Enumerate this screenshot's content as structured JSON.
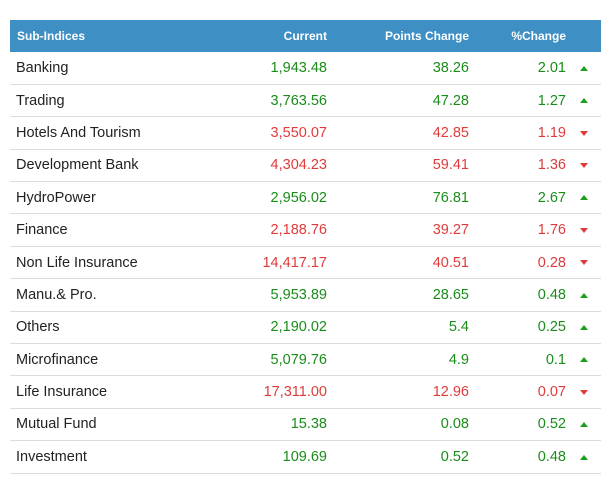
{
  "header": {
    "col1": "Sub-Indices",
    "col2": "Current",
    "col3": "Points Change",
    "col4": "%Change"
  },
  "colors": {
    "header_bg": "#3d8fc4",
    "up": "#1a8c1a",
    "down": "#e03b3b"
  },
  "rows": [
    {
      "name": "Banking",
      "current": "1,943.48",
      "points": "38.26",
      "pct": "2.01",
      "dir": "up"
    },
    {
      "name": "Trading",
      "current": "3,763.56",
      "points": "47.28",
      "pct": "1.27",
      "dir": "up"
    },
    {
      "name": "Hotels And Tourism",
      "current": "3,550.07",
      "points": "42.85",
      "pct": "1.19",
      "dir": "down"
    },
    {
      "name": "Development Bank",
      "current": "4,304.23",
      "points": "59.41",
      "pct": "1.36",
      "dir": "down"
    },
    {
      "name": "HydroPower",
      "current": "2,956.02",
      "points": "76.81",
      "pct": "2.67",
      "dir": "up"
    },
    {
      "name": "Finance",
      "current": "2,188.76",
      "points": "39.27",
      "pct": "1.76",
      "dir": "down"
    },
    {
      "name": "Non Life Insurance",
      "current": "14,417.17",
      "points": "40.51",
      "pct": "0.28",
      "dir": "down"
    },
    {
      "name": "Manu.& Pro.",
      "current": "5,953.89",
      "points": "28.65",
      "pct": "0.48",
      "dir": "up"
    },
    {
      "name": "Others",
      "current": "2,190.02",
      "points": "5.4",
      "pct": "0.25",
      "dir": "up"
    },
    {
      "name": "Microfinance",
      "current": "5,079.76",
      "points": "4.9",
      "pct": "0.1",
      "dir": "up"
    },
    {
      "name": "Life Insurance",
      "current": "17,311.00",
      "points": "12.96",
      "pct": "0.07",
      "dir": "down"
    },
    {
      "name": "Mutual Fund",
      "current": "15.38",
      "points": "0.08",
      "pct": "0.52",
      "dir": "up"
    },
    {
      "name": "Investment",
      "current": "109.69",
      "points": "0.52",
      "pct": "0.48",
      "dir": "up"
    }
  ]
}
